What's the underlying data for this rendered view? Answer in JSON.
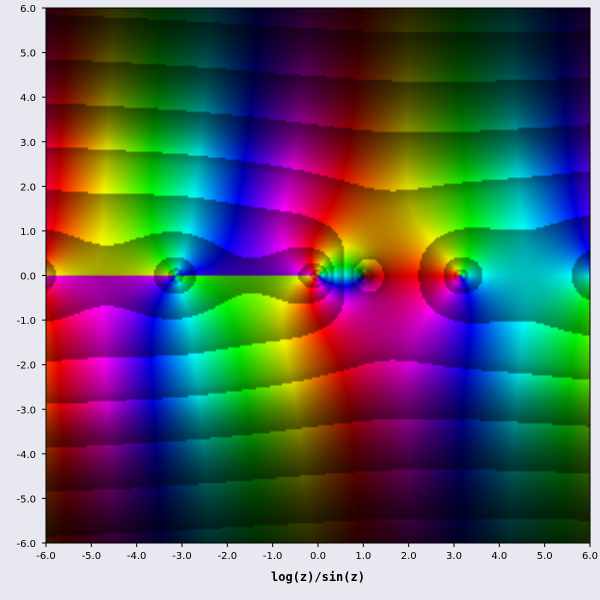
{
  "chart_data": {
    "type": "heatmap",
    "subtype": "domain-coloring",
    "title": "",
    "xlabel": "log(z)/sin(z)",
    "ylabel": "",
    "function": "log(z)/sin(z)",
    "xlim": [
      -6.0,
      6.0
    ],
    "ylim": [
      -6.0,
      6.0
    ],
    "x_ticks": [
      "-6.0",
      "-5.0",
      "-4.0",
      "-3.0",
      "-2.0",
      "-1.0",
      "0.0",
      "1.0",
      "2.0",
      "3.0",
      "4.0",
      "5.0",
      "6.0"
    ],
    "y_ticks": [
      "6.0",
      "5.0",
      "4.0",
      "3.0",
      "2.0",
      "1.0",
      "0.0",
      "-1.0",
      "-2.0",
      "-3.0",
      "-4.0",
      "-5.0",
      "-6.0"
    ],
    "grid": false,
    "legend": "none",
    "background_color": "#e8e8f0"
  }
}
